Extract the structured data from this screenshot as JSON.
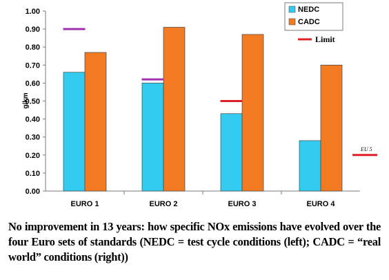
{
  "chart_data": {
    "type": "bar",
    "title": "",
    "xlabel": "",
    "ylabel": "g/km",
    "ylim": [
      0,
      1.0
    ],
    "yticks": [
      "0.00",
      "0.10",
      "0.20",
      "0.30",
      "0.40",
      "0.50",
      "0.60",
      "0.70",
      "0.80",
      "0.90",
      "1.00"
    ],
    "grid": false,
    "legend_position": "top-right",
    "categories": [
      "EURO 1",
      "EURO 2",
      "EURO 3",
      "EURO 4"
    ],
    "series": [
      {
        "name": "NEDC",
        "color": "#33ccf0",
        "values": [
          0.66,
          0.6,
          0.43,
          0.28
        ]
      },
      {
        "name": "CADC",
        "color": "#f27a20",
        "values": [
          0.77,
          0.91,
          0.87,
          0.7
        ]
      }
    ],
    "limit": {
      "name": "Limit",
      "color": "#dd1f26",
      "euro_colors": [
        "#a030b0",
        "#a030b0",
        "#dd1f26"
      ],
      "values": [
        0.9,
        0.62,
        0.5
      ],
      "eu5": {
        "label": "EU 5",
        "value": 0.2
      }
    }
  },
  "caption": "No improvement in 13 years: how specific NOx emissions have evolved over the four Euro sets of standards (NEDC = test cycle conditions (left); CADC = “real world” conditions (right))"
}
